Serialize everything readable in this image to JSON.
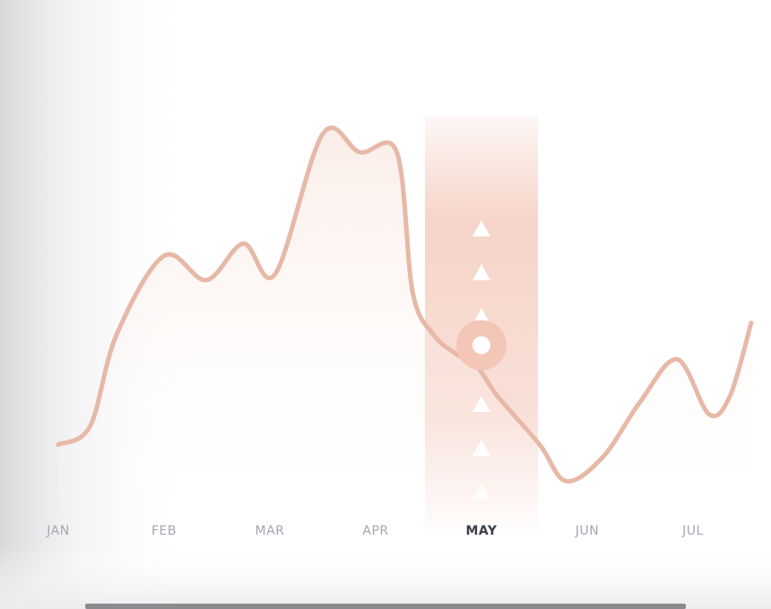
{
  "colors": {
    "line": "#e7b8a7",
    "highlight": "#f3c6b7",
    "marker_fill": "#ffffff",
    "label": "#a3a7b2",
    "label_active": "#3b3e4c"
  },
  "chart_data": {
    "type": "line",
    "categories": [
      "JAN",
      "FEB",
      "MAR",
      "APR",
      "MAY",
      "JUN",
      "JUL"
    ],
    "x": [
      0,
      0.3,
      0.55,
      1.0,
      1.4,
      1.75,
      2.05,
      2.5,
      2.85,
      3.2,
      3.35,
      3.55,
      3.75,
      3.95,
      4.15,
      4.55,
      4.8,
      5.15,
      5.5,
      5.85,
      6.15,
      6.35,
      6.55
    ],
    "values": [
      27,
      30,
      45,
      58,
      54,
      60,
      55,
      78,
      75,
      75,
      52,
      45,
      42,
      40,
      35,
      27,
      21,
      25,
      34,
      41,
      32,
      35,
      47
    ],
    "ylim": [
      0,
      100
    ],
    "highlighted_category": "MAY",
    "highlight_value": 42,
    "grid": false,
    "legend": "none",
    "title": "",
    "xlabel": "",
    "ylabel": ""
  }
}
